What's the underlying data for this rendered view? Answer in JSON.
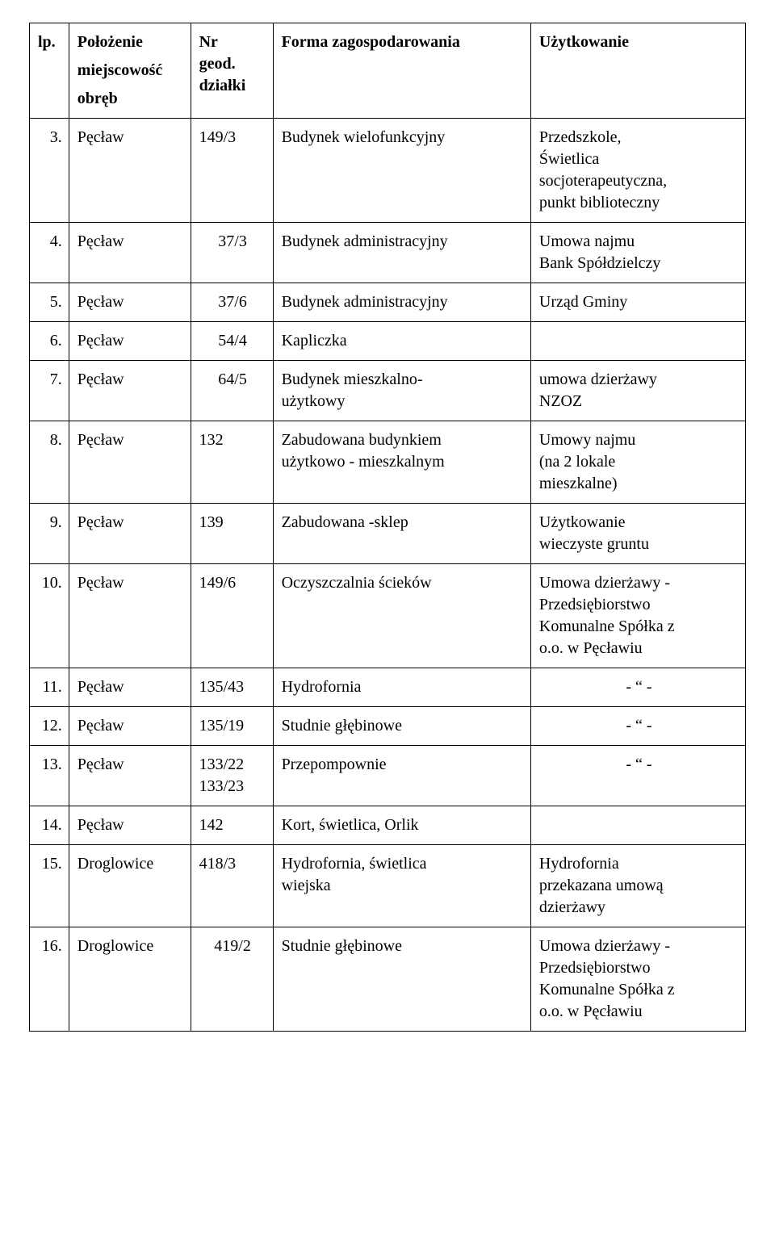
{
  "headers": {
    "lp": "lp.",
    "loc_l1": "Położenie",
    "loc_l2": "miejscowość",
    "loc_l3": "obręb",
    "nr_l1": "Nr",
    "nr_l2": "geod.",
    "nr_l3": "działki",
    "form": "Forma zagospodarowania",
    "use": "Użytkowanie"
  },
  "rows": {
    "r3": {
      "lp": "3.",
      "loc": "Pęcław",
      "nr": "149/3",
      "nr_align": "left",
      "form": "Budynek wielofunkcyjny",
      "use_lines": [
        "Przedszkole,",
        "Świetlica",
        "socjoterapeutyczna,",
        "punkt biblioteczny"
      ]
    },
    "r4": {
      "lp": "4.",
      "loc": "Pęcław",
      "nr": "37/3",
      "nr_align": "center",
      "form": "Budynek administracyjny",
      "use_lines": [
        "Umowa najmu",
        "Bank Spółdzielczy"
      ]
    },
    "r5": {
      "lp": "5.",
      "loc": "Pęcław",
      "nr": "37/6",
      "nr_align": "center",
      "form": "Budynek administracyjny",
      "use_lines": [
        "Urząd Gminy"
      ]
    },
    "r6": {
      "lp": "6.",
      "loc": "Pęcław",
      "nr": "54/4",
      "nr_align": "center",
      "form": "Kapliczka",
      "use_lines": []
    },
    "r7": {
      "lp": "7.",
      "loc": "Pęcław",
      "nr": "64/5",
      "nr_align": "center",
      "form_lines": [
        "Budynek mieszkalno-",
        "użytkowy"
      ],
      "use_lines": [
        "umowa dzierżawy",
        "NZOZ"
      ]
    },
    "r8": {
      "lp": "8.",
      "loc": "Pęcław",
      "nr": "132",
      "nr_align": "left",
      "form_lines": [
        "Zabudowana budynkiem",
        "użytkowo - mieszkalnym"
      ],
      "use_lines": [
        "Umowy najmu",
        "(na 2 lokale",
        "mieszkalne)"
      ]
    },
    "r9": {
      "lp": "9.",
      "loc": "Pęcław",
      "nr": "139",
      "nr_align": "left",
      "form": "Zabudowana -sklep",
      "use_lines": [
        "Użytkowanie",
        "wieczyste gruntu"
      ]
    },
    "r10": {
      "lp": "10.",
      "loc": "Pęcław",
      "nr": "149/6",
      "nr_align": "left",
      "form": "Oczyszczalnia ścieków",
      "use_lines": [
        "Umowa dzierżawy -",
        "Przedsiębiorstwo",
        "Komunalne Spółka z",
        "o.o. w Pęcławiu"
      ]
    },
    "r11": {
      "lp": "11.",
      "loc": "Pęcław",
      "nr": "135/43",
      "nr_align": "left",
      "form": "Hydrofornia",
      "use_ditto": "-    “   -"
    },
    "r12": {
      "lp": "12.",
      "loc": "Pęcław",
      "nr": "135/19",
      "nr_align": "left",
      "form": "Studnie głębinowe",
      "use_ditto": "-    “   -"
    },
    "r13": {
      "lp": "13.",
      "loc": "Pęcław",
      "nr_lines": [
        "133/22",
        "133/23"
      ],
      "nr_align": "left",
      "form": "Przepompownie",
      "use_ditto": "-    “   -"
    },
    "r14": {
      "lp": "14.",
      "loc": "Pęcław",
      "nr": "142",
      "nr_align": "left",
      "form": "Kort, świetlica, Orlik",
      "use_lines": []
    },
    "r15": {
      "lp": "15.",
      "loc": "Droglowice",
      "nr": "418/3",
      "nr_align": "left",
      "form_lines": [
        "Hydrofornia, świetlica",
        "wiejska"
      ],
      "use_lines": [
        "Hydrofornia",
        "przekazana umową",
        "dzierżawy"
      ]
    },
    "r16": {
      "lp": "16.",
      "loc": "Droglowice",
      "nr": "419/2",
      "nr_align": "center",
      "form": "Studnie głębinowe",
      "use_lines": [
        "Umowa dzierżawy -",
        "Przedsiębiorstwo",
        "Komunalne Spółka z",
        "o.o. w Pęcławiu"
      ]
    }
  }
}
